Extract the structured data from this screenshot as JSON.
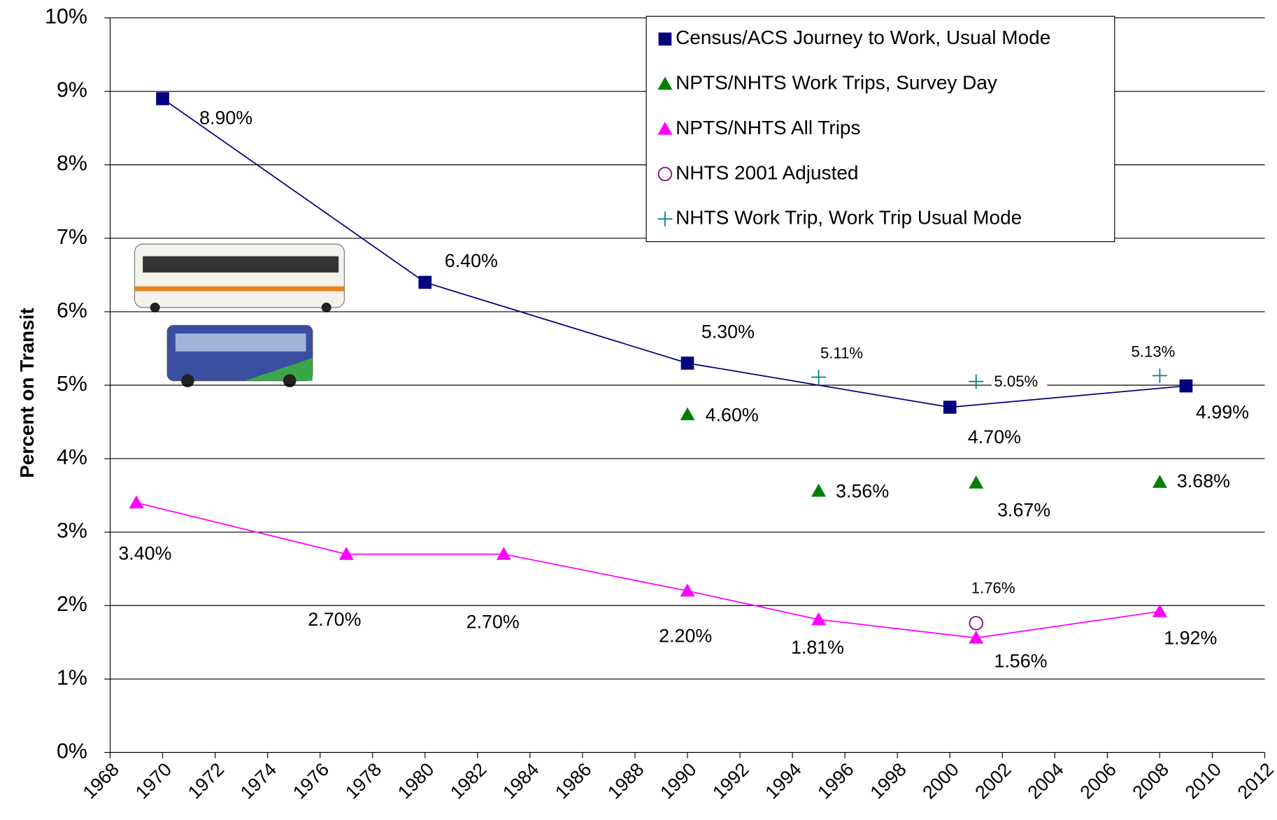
{
  "chart_data": {
    "type": "line",
    "y_label": "Percent on Transit",
    "xlim": [
      1968,
      2012
    ],
    "ylim": [
      0,
      10
    ],
    "xticks": [
      1968,
      1970,
      1972,
      1974,
      1976,
      1978,
      1980,
      1982,
      1984,
      1986,
      1988,
      1990,
      1992,
      1994,
      1996,
      1998,
      2000,
      2002,
      2004,
      2006,
      2008,
      2010,
      2012
    ],
    "yticks": [
      {
        "value": 0,
        "label": "0%"
      },
      {
        "value": 1,
        "label": "1%"
      },
      {
        "value": 2,
        "label": "2%"
      },
      {
        "value": 3,
        "label": "3%"
      },
      {
        "value": 4,
        "label": "4%"
      },
      {
        "value": 5,
        "label": "5%"
      },
      {
        "value": 6,
        "label": "6%"
      },
      {
        "value": 7,
        "label": "7%"
      },
      {
        "value": 8,
        "label": "8%"
      },
      {
        "value": 9,
        "label": "9%"
      },
      {
        "value": 10,
        "label": "10%"
      }
    ],
    "grid": true,
    "legend": "top-right",
    "series": [
      {
        "name": "Census/ACS Journey to Work, Usual Mode",
        "color": "#000080",
        "marker": "square",
        "line": true,
        "x": [
          1970,
          1980,
          1990,
          2000,
          2009
        ],
        "values": [
          8.9,
          6.4,
          5.3,
          4.7,
          4.99
        ],
        "value_labels": [
          "8.90%",
          "6.40%",
          "5.30%",
          "4.70%",
          "4.99%"
        ]
      },
      {
        "name": "NPTS/NHTS Work Trips, Survey Day",
        "color": "#008000",
        "marker": "triangle",
        "line": false,
        "x": [
          1990,
          1995,
          2001,
          2008
        ],
        "values": [
          4.6,
          3.56,
          3.67,
          3.68
        ],
        "value_labels": [
          "4.60%",
          "3.56%",
          "3.67%",
          "3.68%"
        ]
      },
      {
        "name": "NPTS/NHTS All Trips",
        "color": "#ff00ff",
        "marker": "triangle",
        "line": true,
        "x": [
          1969,
          1977,
          1983,
          1990,
          1995,
          2001,
          2008
        ],
        "values": [
          3.4,
          2.7,
          2.7,
          2.2,
          1.81,
          1.56,
          1.92
        ],
        "value_labels": [
          "3.40%",
          "2.70%",
          "2.70%",
          "2.20%",
          "1.81%",
          "1.56%",
          "1.92%"
        ]
      },
      {
        "name": "NHTS 2001 Adjusted",
        "color": "#800080",
        "marker": "circle",
        "line": false,
        "x": [
          2001
        ],
        "values": [
          1.76
        ],
        "value_labels": [
          "1.76%"
        ]
      },
      {
        "name": "NHTS Work Trip, Work Trip Usual Mode",
        "color": "#008080",
        "marker": "plus",
        "line": false,
        "x": [
          1995,
          2001,
          2008
        ],
        "values": [
          5.11,
          5.05,
          5.13
        ],
        "value_labels": [
          "5.11%",
          "5.05%",
          "5.13%"
        ]
      }
    ]
  }
}
